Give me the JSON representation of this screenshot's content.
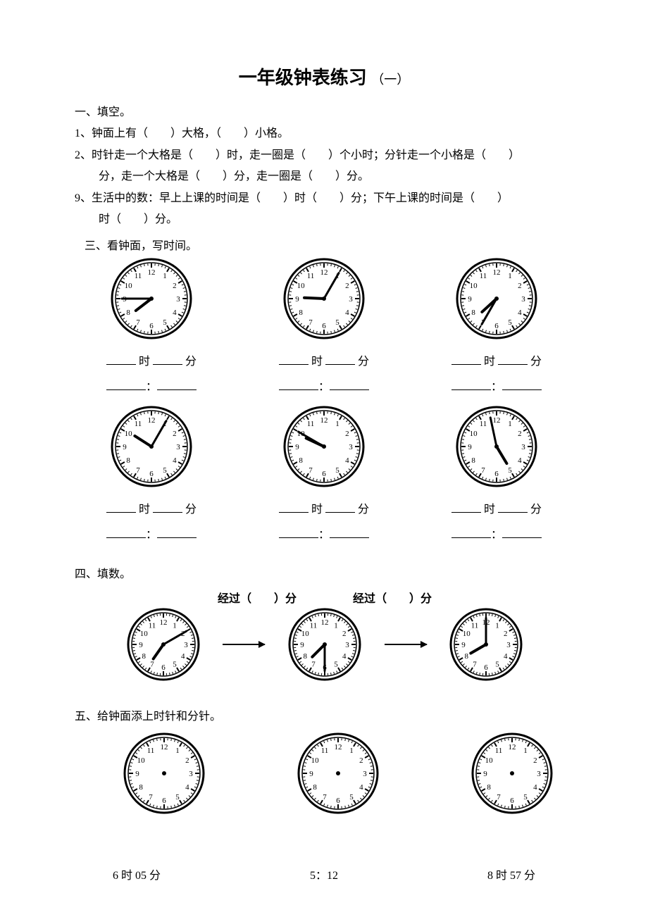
{
  "doc": {
    "title_main": "一年级钟表练习",
    "title_sub": "（一）",
    "s1_header": "一、填空。",
    "q1": "1、钟面上有（　　）大格，（　　）小格。",
    "q2a": "2、时针走一个大格是（　　）时，走一圈是（　　）个小时；分针走一个小格是（　　）",
    "q2b": "分，走一个大格是（　　）分，走一圈是（　　）分。",
    "q9a": "9、生活中的数：早上上课的时间是（　　）时（　　）分；下午上课的时间是（　　）",
    "q9b": "时（　　）分。",
    "s3_header": "三、看钟面，写时间。",
    "ans_shi": "时",
    "ans_fen": "分",
    "colon": "：",
    "s4_header": "四、填数。",
    "pass_label": "经过（　　）分",
    "s5_header": "五、给钟面添上时针和分针。",
    "bottom1": "6 时 05 分",
    "bottom2": "5：12",
    "bottom3": "8 时 57 分"
  },
  "clocks": {
    "style": {
      "radius": 56,
      "stroke": "#000000",
      "fill": "#ffffff",
      "num_font": 11,
      "tick_major": 6,
      "tick_minor": 3,
      "hour_len": 28,
      "min_len": 42,
      "hand_width_hour": 4,
      "hand_width_min": 3,
      "ring_gap": 3
    },
    "row1": [
      {
        "hour": 7,
        "minute": 45
      },
      {
        "hour": 9,
        "minute": 5
      },
      {
        "hour": 7,
        "minute": 35
      }
    ],
    "row2": [
      {
        "hour": 10,
        "minute": 5
      },
      {
        "hour": 9,
        "minute": 50
      },
      {
        "hour": 4,
        "minute": 58
      }
    ],
    "q4": [
      {
        "hour": 7,
        "minute": 10,
        "radius": 50
      },
      {
        "hour": 7,
        "minute": 30,
        "radius": 50
      },
      {
        "hour": 8,
        "minute": 0,
        "radius": 50
      }
    ],
    "q5": [
      {
        "hour": null,
        "minute": null
      },
      {
        "hour": null,
        "minute": null
      },
      {
        "hour": null,
        "minute": null
      }
    ]
  }
}
